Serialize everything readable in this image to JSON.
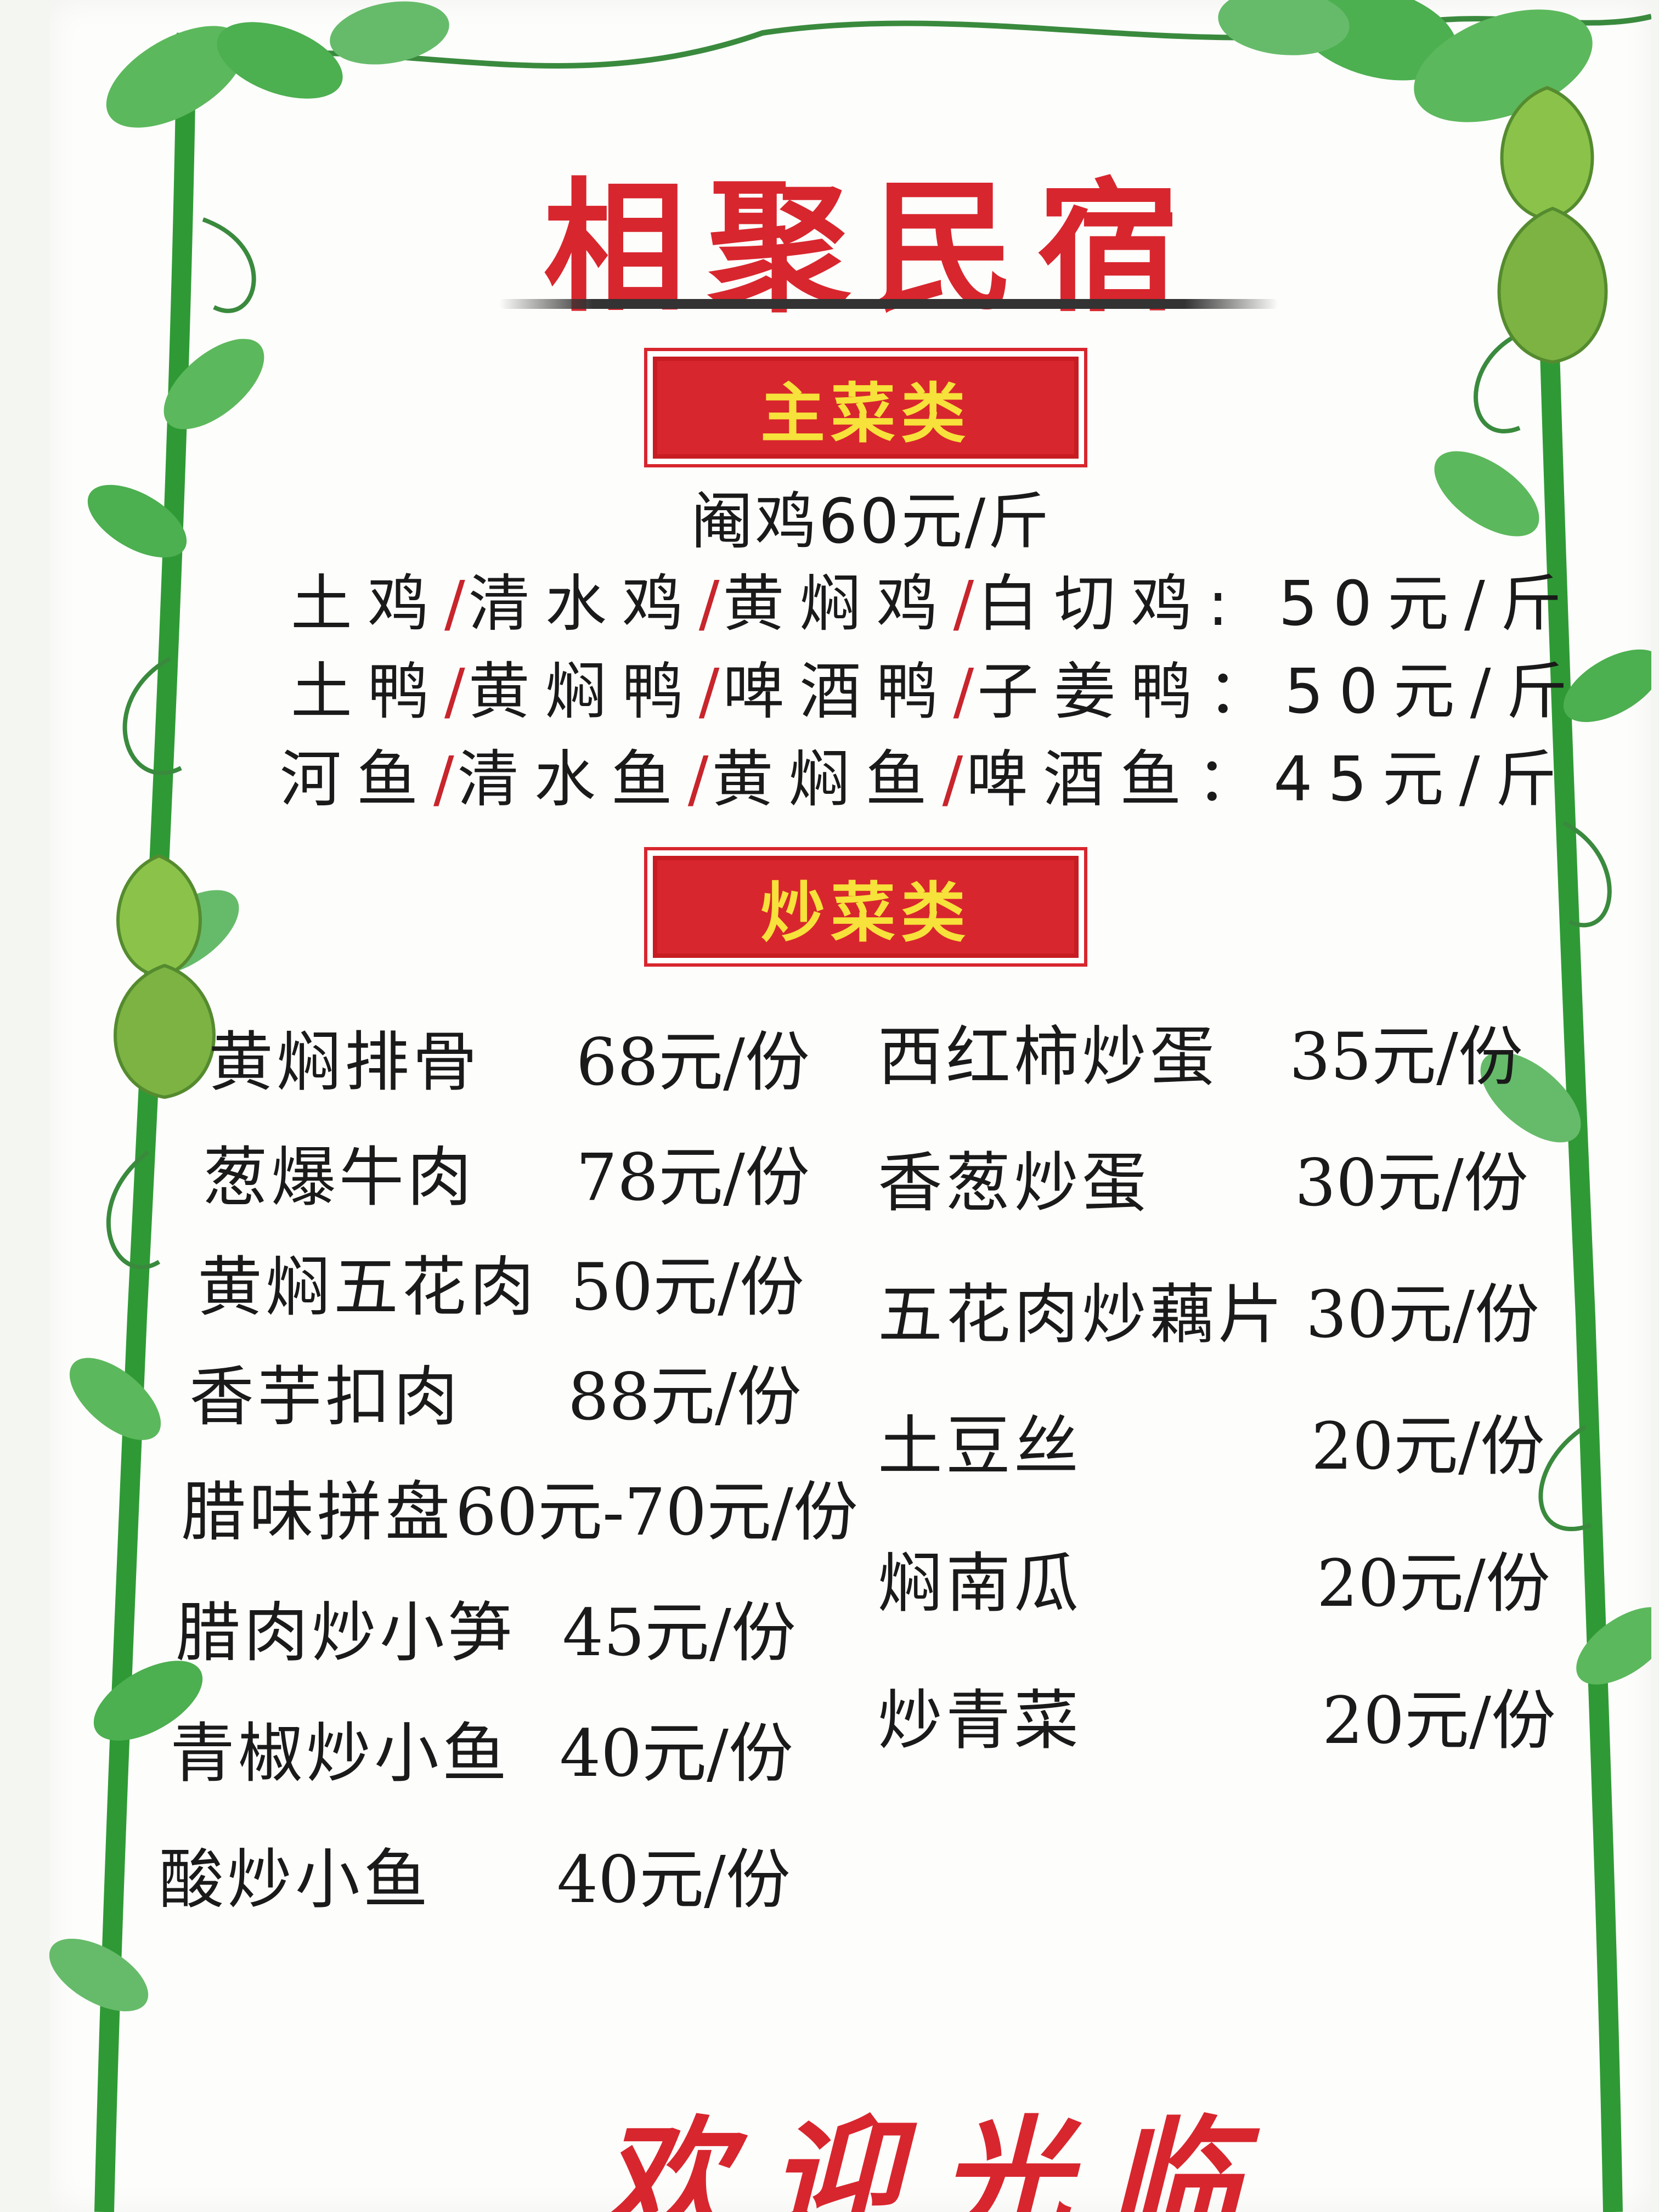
{
  "title": "相聚民宿",
  "sections": {
    "main_dishes": {
      "label": "主菜类",
      "lines": [
        {
          "items": [
            "阉鸡60元/斤"
          ]
        },
        {
          "items": [
            "土鸡",
            "清水鸡",
            "黄焖鸡",
            "白切鸡: 50元/斤"
          ]
        },
        {
          "items": [
            "土鸭",
            "黄焖鸭",
            "啤酒鸭",
            "子姜鸭：50元/斤"
          ]
        },
        {
          "items": [
            "河鱼",
            "清水鱼",
            "黄焖鱼",
            "啤酒鱼：45元/斤"
          ]
        }
      ]
    },
    "stir_fry": {
      "label": "炒菜类",
      "left": [
        {
          "name": "黄焖排骨",
          "price": "68元/份"
        },
        {
          "name": "葱爆牛肉",
          "price": "78元/份"
        },
        {
          "name": "黄焖五花肉",
          "price": "50元/份"
        },
        {
          "name": "香芋扣肉",
          "price": "88元/份"
        },
        {
          "name": "腊味拼盘",
          "price": "60元-70元/份"
        },
        {
          "name": "腊肉炒小笋",
          "price": "45元/份"
        },
        {
          "name": "青椒炒小鱼",
          "price": "40元/份"
        },
        {
          "name": "酸炒小鱼",
          "price": "40元/份"
        }
      ],
      "right": [
        {
          "name": "西红柿炒蛋",
          "price": "35元/份"
        },
        {
          "name": "香葱炒蛋",
          "price": "30元/份"
        },
        {
          "name": "五花肉炒藕片",
          "price": "30元/份"
        },
        {
          "name": "土豆丝",
          "price": "20元/份"
        },
        {
          "name": "焖南瓜",
          "price": "20元/份"
        },
        {
          "name": "炒青菜",
          "price": "20元/份"
        }
      ]
    }
  },
  "footer": "欢迎光临",
  "colors": {
    "title_red": "#d8262e",
    "banner_text": "#f7e13b",
    "vine_green": "#3aa13a",
    "leaf_green": "#5cb85c"
  }
}
